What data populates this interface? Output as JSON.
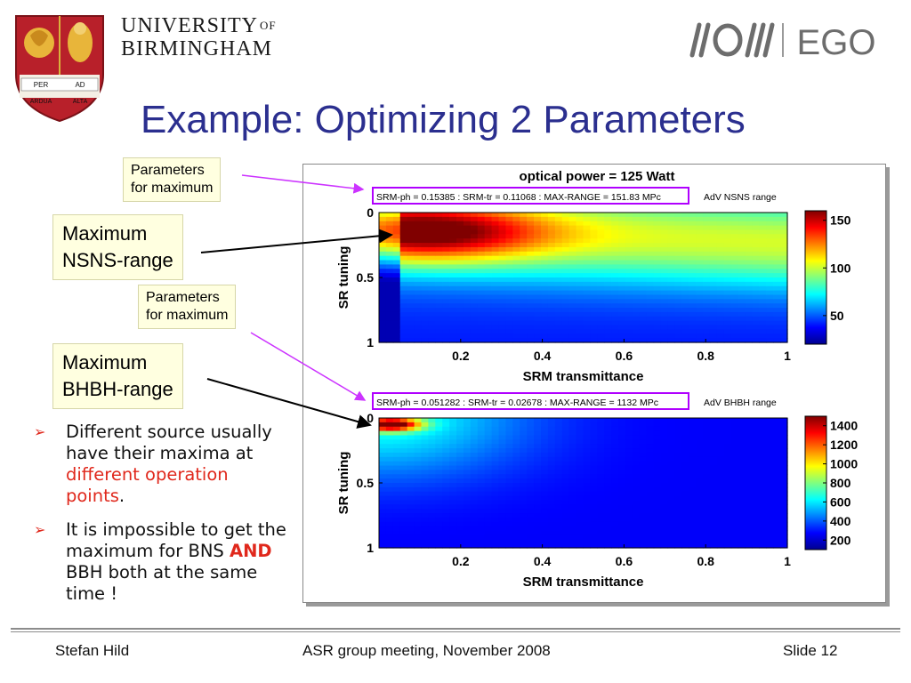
{
  "header": {
    "university_line1": "UNIVERSITY",
    "university_of": "OF",
    "university_line2": "BIRMINGHAM",
    "crest_text_top_left": "PER",
    "crest_text_top_right": "AD",
    "crest_text_bottom_left": "ARDUA",
    "crest_text_bottom_right": "ALTA",
    "ego_logo_text": "EGO"
  },
  "title": "Example: Optimizing 2 Parameters",
  "callouts": {
    "params1": [
      "Parameters",
      "for maximum"
    ],
    "nsns": [
      "Maximum",
      "NSNS-range"
    ],
    "params2": [
      "Parameters",
      "for maximum"
    ],
    "bhbh": [
      "Maximum",
      "BHBH-range"
    ]
  },
  "bullets": {
    "b1_text": "Different source usually have their maxima at ",
    "b1_red": "different operation points",
    "b1_end": ".",
    "b2_text": "It is impossible to get the maximum for BNS ",
    "b2_bold": "AND",
    "b2_end": " BBH both at the same time !"
  },
  "footer": {
    "left": "Stefan Hild",
    "center": "ASR group meeting, November 2008",
    "right": "Slide 12"
  },
  "colors": {
    "title": "#2b2f8f",
    "callout_bg": "#ffffe0",
    "highlight_box": "#b000ff",
    "bullet_red": "#e0281c"
  },
  "chart_data": [
    {
      "type": "heatmap",
      "title": "optical power =    125 Watt",
      "subtitle": "SRM-ph  = 0.15385 : SRM-tr = 0.11068 : MAX-RANGE =     151.83 MPc",
      "side_label": "AdV NSNS range",
      "xlabel": "SRM transmittance",
      "ylabel": "SR tuning",
      "xticks": [
        "0.2",
        "0.4",
        "0.6",
        "0.8",
        "1"
      ],
      "yticks": [
        "0",
        "0.5",
        "1"
      ],
      "xlim": [
        0,
        1
      ],
      "ylim": [
        0,
        1
      ],
      "y_reversed": true,
      "colorbar_ticks": [
        "150",
        "100",
        "50"
      ],
      "colorbar_values": [
        150,
        100,
        50
      ],
      "colorbar_range": [
        20,
        160
      ],
      "maximum": {
        "x": 0.11068,
        "y": 0.15385,
        "value": 151.83
      }
    },
    {
      "type": "heatmap",
      "title": "",
      "subtitle": "SRM-ph  = 0.051282 : SRM-tr = 0.02678 : MAX-RANGE =      1132 MPc",
      "side_label": "AdV BHBH range",
      "xlabel": "SRM transmittance",
      "ylabel": "SR tuning",
      "xticks": [
        "0.2",
        "0.4",
        "0.6",
        "0.8",
        "1"
      ],
      "yticks": [
        "0",
        "0.5",
        "1"
      ],
      "xlim": [
        0,
        1
      ],
      "ylim": [
        0,
        1
      ],
      "y_reversed": true,
      "colorbar_ticks": [
        "1400",
        "1200",
        "1000",
        "800",
        "600",
        "400",
        "200"
      ],
      "colorbar_values": [
        1400,
        1200,
        1000,
        800,
        600,
        400,
        200
      ],
      "colorbar_range": [
        100,
        1500
      ],
      "maximum": {
        "x": 0.02678,
        "y": 0.051282,
        "value": 1132
      }
    }
  ]
}
